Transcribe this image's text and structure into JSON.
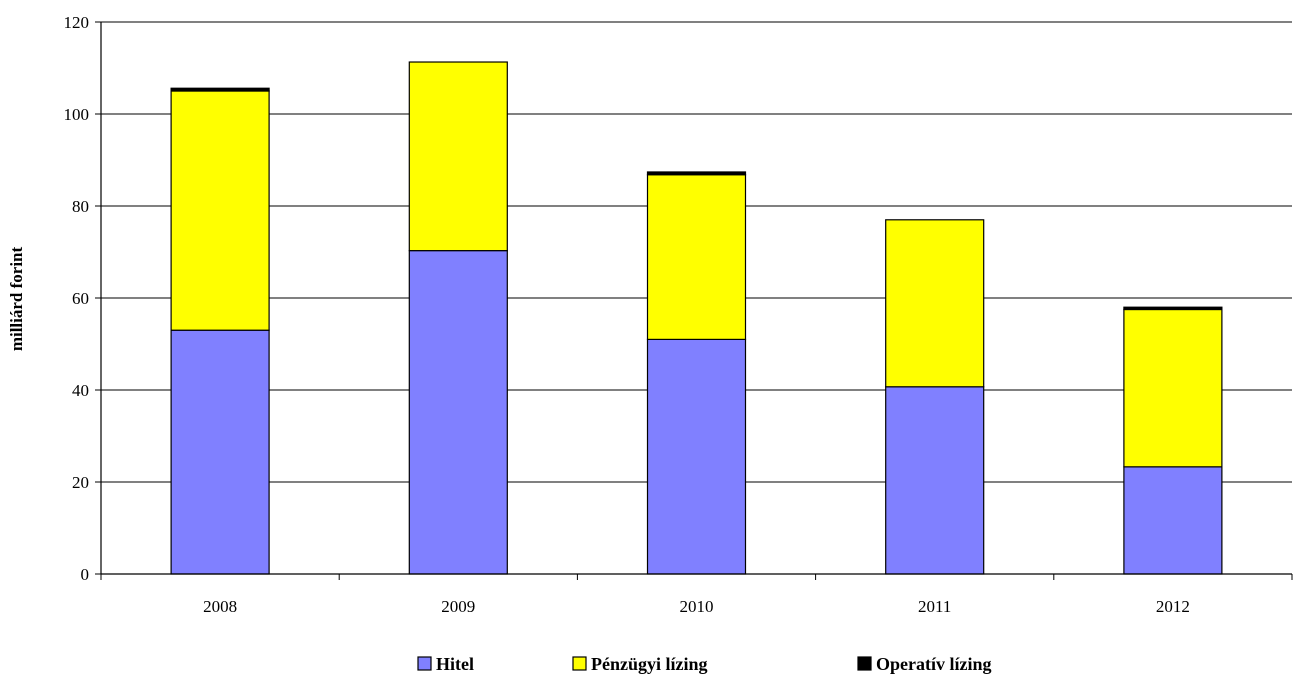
{
  "chart_data": {
    "type": "bar",
    "stacked": true,
    "categories": [
      "2008",
      "2009",
      "2010",
      "2011",
      "2012"
    ],
    "series": [
      {
        "name": "Hitel",
        "color": "#8080FF",
        "values": [
          53,
          70.3,
          51,
          40.7,
          23.3
        ]
      },
      {
        "name": "Pénzügyi lízing",
        "color": "#FFFF00",
        "values": [
          52,
          41,
          35.8,
          36.3,
          34.2
        ]
      },
      {
        "name": "Operatív lízing",
        "color": "#000000",
        "values": [
          0.6,
          0,
          0.6,
          0,
          0.5
        ]
      }
    ],
    "ylabel": "milliárd forint",
    "ylim": [
      0,
      120
    ],
    "yticks": [
      0,
      20,
      40,
      60,
      80,
      100,
      120
    ],
    "grid": true,
    "legend_position": "bottom"
  }
}
